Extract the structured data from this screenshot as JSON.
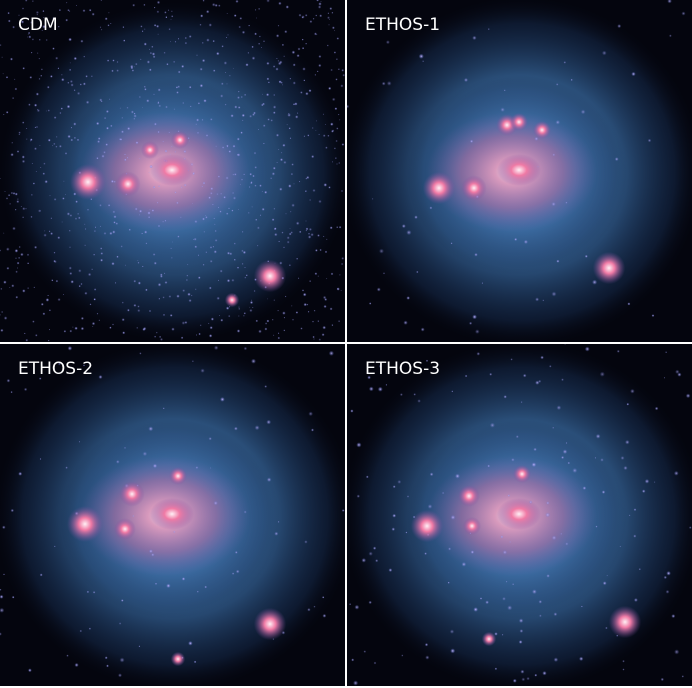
{
  "panels": [
    {
      "label": "CDM"
    },
    {
      "label": "ETHOS-1"
    },
    {
      "label": "ETHOS-2"
    },
    {
      "label": "ETHOS-3"
    }
  ]
}
